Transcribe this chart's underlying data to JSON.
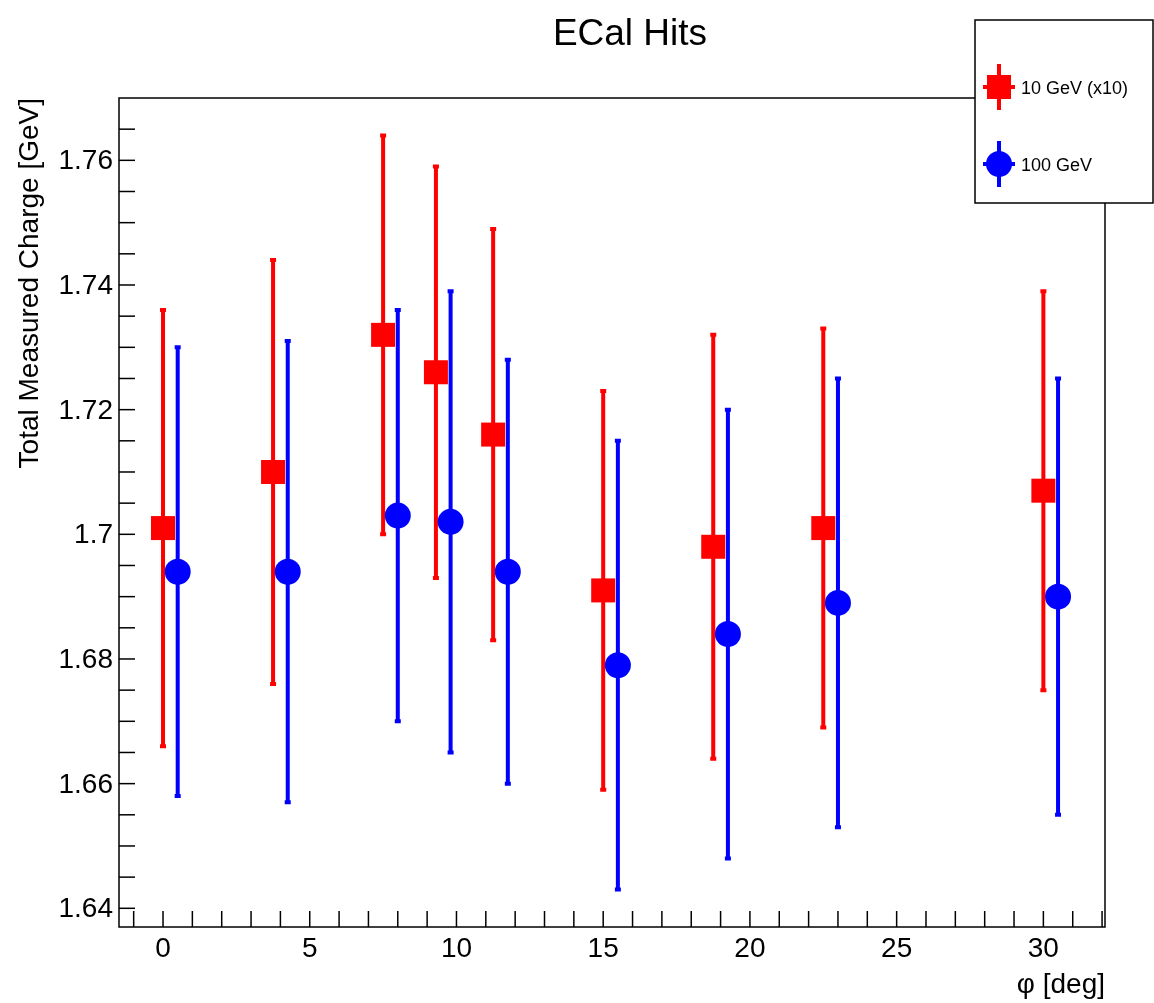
{
  "chart_data": {
    "type": "scatter",
    "title": "ECal Hits",
    "xlabel": "φ [deg]",
    "ylabel": "Total Measured Charge [GeV]",
    "xlim": [
      -1.5,
      32.1
    ],
    "ylim": [
      1.637,
      1.77
    ],
    "xticks": [
      {
        "value": -1,
        "label": null
      },
      0,
      {
        "value": 1,
        "label": null
      },
      {
        "value": 2,
        "label": null
      },
      {
        "value": 3,
        "label": null
      },
      {
        "value": 4,
        "label": null
      },
      5,
      {
        "value": 6,
        "label": null
      },
      {
        "value": 7,
        "label": null
      },
      {
        "value": 8,
        "label": null
      },
      {
        "value": 9,
        "label": null
      },
      10,
      {
        "value": 11,
        "label": null
      },
      {
        "value": 12,
        "label": null
      },
      {
        "value": 13,
        "label": null
      },
      {
        "value": 14,
        "label": null
      },
      15,
      {
        "value": 16,
        "label": null
      },
      {
        "value": 17,
        "label": null
      },
      {
        "value": 18,
        "label": null
      },
      {
        "value": 19,
        "label": null
      },
      20,
      {
        "value": 21,
        "label": null
      },
      {
        "value": 22,
        "label": null
      },
      {
        "value": 23,
        "label": null
      },
      {
        "value": 24,
        "label": null
      },
      25,
      {
        "value": 26,
        "label": null
      },
      {
        "value": 27,
        "label": null
      },
      {
        "value": 28,
        "label": null
      },
      {
        "value": 29,
        "label": null
      },
      30,
      {
        "value": 31,
        "label": null
      },
      {
        "value": 32,
        "label": null
      }
    ],
    "yticks": [
      1.64,
      {
        "value": 1.645,
        "label": null
      },
      {
        "value": 1.65,
        "label": null
      },
      {
        "value": 1.655,
        "label": null
      },
      1.66,
      {
        "value": 1.665,
        "label": null
      },
      {
        "value": 1.67,
        "label": null
      },
      {
        "value": 1.675,
        "label": null
      },
      1.68,
      {
        "value": 1.685,
        "label": null
      },
      {
        "value": 1.69,
        "label": null
      },
      {
        "value": 1.695,
        "label": null
      },
      1.7,
      {
        "value": 1.705,
        "label": null
      },
      {
        "value": 1.71,
        "label": null
      },
      {
        "value": 1.715,
        "label": null
      },
      1.72,
      {
        "value": 1.725,
        "label": null
      },
      {
        "value": 1.73,
        "label": null
      },
      {
        "value": 1.735,
        "label": null
      },
      1.74,
      {
        "value": 1.745,
        "label": null
      },
      {
        "value": 1.75,
        "label": null
      },
      {
        "value": 1.755,
        "label": null
      },
      1.76,
      {
        "value": 1.765,
        "label": null
      }
    ],
    "legend": "top right",
    "grid": false,
    "series": [
      {
        "name": "10 GeV (x10)",
        "color": "#ff0000",
        "marker": "square",
        "x": [
          0,
          3.75,
          7.5,
          9.3,
          11.25,
          15,
          18.75,
          22.5,
          30
        ],
        "values": [
          1.701,
          1.71,
          1.732,
          1.726,
          1.716,
          1.691,
          1.698,
          1.701,
          1.707
        ],
        "errors": [
          0.035,
          0.034,
          0.032,
          0.033,
          0.033,
          0.032,
          0.034,
          0.032,
          0.032
        ]
      },
      {
        "name": "100 GeV",
        "color": "#0000ff",
        "marker": "circle",
        "x": [
          0.5,
          4.25,
          8,
          9.8,
          11.75,
          15.5,
          19.25,
          23,
          30.5
        ],
        "values": [
          1.694,
          1.694,
          1.703,
          1.702,
          1.694,
          1.679,
          1.684,
          1.689,
          1.69
        ],
        "errors": [
          0.036,
          0.037,
          0.033,
          0.037,
          0.034,
          0.036,
          0.036,
          0.036,
          0.035
        ]
      }
    ]
  }
}
